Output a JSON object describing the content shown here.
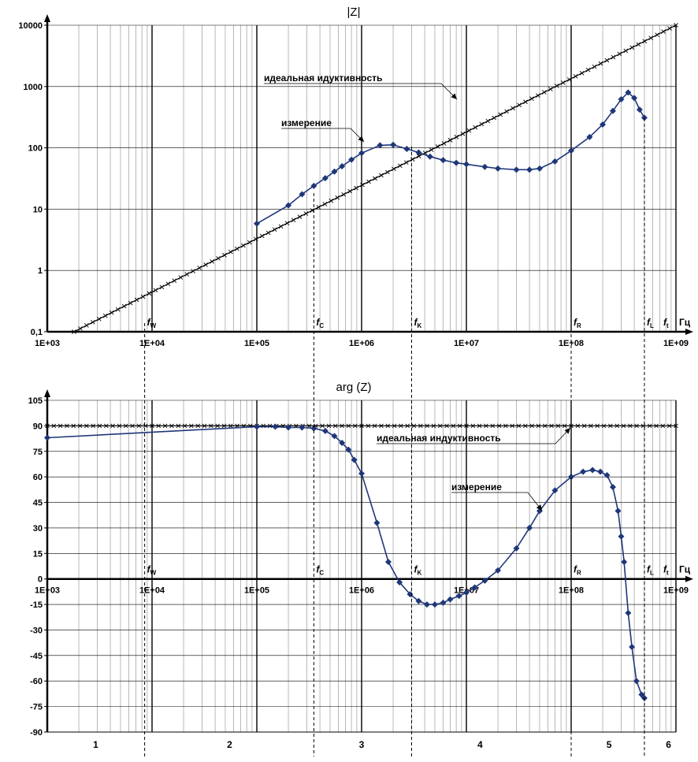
{
  "chart_data": [
    {
      "type": "line",
      "title": "|Z|",
      "xscale": "log",
      "yscale": "log",
      "xlim": [
        1000,
        1000000000
      ],
      "ylim": [
        0.1,
        10000
      ],
      "xticks": [
        "1E+03",
        "1E+04",
        "1E+05",
        "1E+06",
        "1E+07",
        "1E+08",
        "1E+09"
      ],
      "yticks": [
        "0,1",
        "1",
        "10",
        "100",
        "1000",
        "10000"
      ],
      "x_unit_label": "Гц",
      "grid": true,
      "series": [
        {
          "name": "идеальная идуктивность",
          "x": [
            1800,
            1000000000
          ],
          "y": [
            0.1,
            10000
          ],
          "marker": "x",
          "color": "#000000"
        },
        {
          "name": "измерение",
          "x": [
            100000,
            200000,
            270000,
            350000,
            450000,
            550000,
            650000,
            800000,
            1000000,
            1500000,
            2000000,
            2700000,
            3500000,
            4500000,
            6000000,
            8000000,
            10000000,
            15000000,
            20000000,
            30000000,
            40000000,
            50000000,
            70000000,
            100000000,
            150000000,
            200000000,
            250000000,
            300000000,
            350000000,
            400000000,
            450000000,
            500000000
          ],
          "y": [
            5.8,
            11.5,
            17.5,
            24,
            32,
            41,
            50,
            64,
            82,
            110,
            112,
            96,
            84,
            72,
            63,
            57,
            54,
            49,
            46,
            44,
            44,
            46,
            60,
            90,
            150,
            240,
            400,
            620,
            800,
            650,
            420,
            310
          ],
          "marker": "diamond",
          "color": "#1f3779"
        }
      ],
      "annotations": [
        "идеальная идуктивность",
        "измерение"
      ],
      "markers": [
        {
          "label": "f",
          "sub": "W",
          "x": 8500
        },
        {
          "label": "f",
          "sub": "C",
          "x": 350000
        },
        {
          "label": "f",
          "sub": "K",
          "x": 3000000
        },
        {
          "label": "f",
          "sub": "R",
          "x": 100000000
        },
        {
          "label": "f",
          "sub": "L",
          "x": 500000000
        },
        {
          "label": "f",
          "sub": "t",
          "x": 720000000
        }
      ]
    },
    {
      "type": "line",
      "title": "arg (Z)",
      "xscale": "log",
      "xlim": [
        1000,
        1000000000
      ],
      "ylim": [
        -90,
        105
      ],
      "xticks": [
        "1E+03",
        "1E+04",
        "1E+05",
        "1E+06",
        "1E+07",
        "1E+08",
        "1E+09"
      ],
      "yticks": [
        "105",
        "90",
        "75",
        "60",
        "45",
        "30",
        "15",
        "0",
        "-15",
        "-30",
        "-45",
        "-60",
        "-75",
        "-90"
      ],
      "x_unit_label": "Гц",
      "grid": true,
      "series": [
        {
          "name": "идеальная индуктивность",
          "x": [
            1000,
            1000000000
          ],
          "y": [
            90,
            90
          ],
          "marker": "x",
          "color": "#000000"
        },
        {
          "name": "измерение",
          "x": [
            1000,
            100000,
            150000,
            200000,
            270000,
            350000,
            450000,
            550000,
            650000,
            750000,
            850000,
            1000000,
            1400000,
            1800000,
            2300000,
            2900000,
            3500000,
            4200000,
            5000000,
            6000000,
            7000000,
            8500000,
            10000000,
            12000000,
            15000000,
            20000000,
            30000000,
            40000000,
            50000000,
            70000000,
            100000000,
            130000000,
            160000000,
            190000000,
            220000000,
            250000000,
            280000000,
            300000000,
            320000000,
            350000000,
            380000000,
            420000000,
            470000000,
            500000000
          ],
          "y": [
            83,
            89.5,
            89.5,
            89,
            89,
            88.5,
            87,
            84,
            80,
            76,
            70,
            62,
            33,
            10,
            -2,
            -9,
            -13,
            -15,
            -15,
            -14,
            -12,
            -10,
            -8,
            -5,
            -1,
            5,
            18,
            30,
            40,
            52,
            60,
            63,
            64,
            63,
            61,
            54,
            40,
            25,
            10,
            -20,
            -40,
            -60,
            -68,
            -70
          ],
          "marker": "diamond",
          "color": "#1f3779"
        }
      ],
      "annotations": [
        "идеальная индуктивность",
        "измерение"
      ],
      "markers": [
        {
          "label": "f",
          "sub": "W",
          "x": 8500
        },
        {
          "label": "f",
          "sub": "C",
          "x": 350000
        },
        {
          "label": "f",
          "sub": "K",
          "x": 3000000
        },
        {
          "label": "f",
          "sub": "R",
          "x": 100000000
        },
        {
          "label": "f",
          "sub": "L",
          "x": 500000000
        },
        {
          "label": "f",
          "sub": "t",
          "x": 720000000
        }
      ],
      "regions": [
        {
          "label": "1",
          "center_x": 2900
        },
        {
          "label": "2",
          "center_x": 55000
        },
        {
          "label": "3",
          "center_x": 1000000
        },
        {
          "label": "4",
          "center_x": 13500000
        },
        {
          "label": "5",
          "center_x": 230000000
        },
        {
          "label": "6",
          "center_x": 850000000
        }
      ]
    }
  ]
}
